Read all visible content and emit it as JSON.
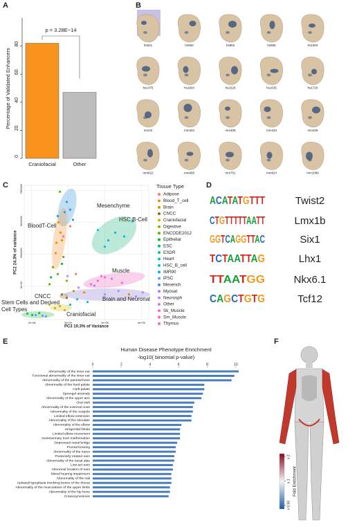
{
  "panel_labels": [
    "A",
    "B",
    "C",
    "D",
    "E",
    "F"
  ],
  "chart_data": [
    {
      "type": "bar",
      "ylabel": "Percentage of Validated Enhancers",
      "categories": [
        "Craniofacial",
        "Other"
      ],
      "values": [
        82,
        47
      ],
      "colors": [
        "#f7931e",
        "#bdbdbd"
      ],
      "ylim": [
        0,
        100
      ],
      "yticks": [
        0,
        20,
        40,
        60,
        80
      ],
      "annotation": "p = 3.28E−14"
    },
    {
      "type": "scatter",
      "xlabel": "PC3 10.3% of Variance",
      "ylabel": "PC2 24.3% of variance",
      "legend_title": "Tissue Type",
      "xlim": [
        -2400000,
        4400000
      ],
      "ylim": [
        -2600000,
        7900000
      ],
      "xticks": [
        {
          "value": -2000000,
          "label": "-2e+06"
        },
        {
          "value": 0,
          "label": "0e+00"
        },
        {
          "value": 2000000,
          "label": "2e+06"
        },
        {
          "value": 4000000,
          "label": "4e+06"
        }
      ],
      "yticks": [
        {
          "value": 0,
          "label": "0e+00"
        },
        2500000,
        5000000,
        7500000
      ],
      "grid": true,
      "series": [
        {
          "name": "Adipose",
          "color": "#f8766d",
          "x": [
            110000,
            420000
          ],
          "values": [
            4700000,
            960000
          ]
        },
        {
          "name": "Blood_T_cell",
          "color": "#f08a1c",
          "x": [
            -530000,
            -420000,
            -640000,
            -340000,
            -680000
          ],
          "values": [
            5000000,
            4200000,
            3400000,
            3600000,
            2600000
          ]
        },
        {
          "name": "Brain",
          "color": "#d39200",
          "x": [
            870000,
            3320000
          ],
          "values": [
            -480000,
            -640000
          ]
        },
        {
          "name": "CNCC",
          "color": "#8c6d1f",
          "x": [
            -340000,
            -80000
          ],
          "values": [
            -640000,
            -910000
          ]
        },
        {
          "name": "Craniofacial",
          "color": "#c9b300",
          "x": [
            -1020000,
            -720000,
            -450000,
            -190000
          ],
          "values": [
            -1440000,
            -1710000,
            -1550000,
            -1870000
          ]
        },
        {
          "name": "Digestive",
          "color": "#93aa00",
          "x": [
            300000,
            -80000
          ],
          "values": [
            -370000,
            430000
          ]
        },
        {
          "name": "ENCODE2012",
          "color": "#5eb300",
          "x": [
            -450000,
            -830000,
            -570000,
            -260000,
            -1020000
          ],
          "values": [
            7400000,
            1500000,
            960000,
            2300000,
            160000
          ]
        },
        {
          "name": "Epithelial",
          "color": "#00ba38",
          "x": [
            -940000,
            -340000
          ],
          "values": [
            700000,
            1760000
          ]
        },
        {
          "name": "ESC",
          "color": "#00bf74",
          "x": [
            -1960000,
            -1580000,
            -2230000
          ],
          "values": [
            -2250000,
            -2090000,
            -2140000
          ]
        },
        {
          "name": "ESDR",
          "color": "#00c19f",
          "x": [
            110000
          ],
          "values": [
            -1440000
          ]
        },
        {
          "name": "Heart",
          "color": "#00bfc4",
          "x": [
            490000,
            1060000
          ],
          "values": [
            -1020000,
            -1230000
          ]
        },
        {
          "name": "HSC_B_cell",
          "color": "#00b9e3",
          "x": [
            1620000,
            2190000,
            2570000,
            2000000,
            3510000,
            3060000
          ],
          "values": [
            4400000,
            3600000,
            4200000,
            3100000,
            5100000,
            3900000
          ]
        },
        {
          "name": "IMR90",
          "color": "#00adfa",
          "x": [
            -570000
          ],
          "values": [
            5500000
          ]
        },
        {
          "name": "iPSC",
          "color": "#619cff",
          "x": [
            -1770000,
            -1210000,
            -1400000
          ],
          "values": [
            -2250000,
            -2350000,
            -2300000
          ]
        },
        {
          "name": "Mesench",
          "color": "#3b8ee8",
          "x": [
            -80000,
            110000,
            -190000,
            260000
          ],
          "values": [
            6600000,
            6000000,
            5800000,
            5200000
          ]
        },
        {
          "name": "Myosat",
          "color": "#9e7bff",
          "x": [
            1430000
          ],
          "values": [
            50000
          ]
        },
        {
          "name": "Neurosph",
          "color": "#b983ff",
          "x": [
            2000000,
            2750000,
            3700000,
            4080000
          ],
          "values": [
            -640000,
            -370000,
            -800000,
            -480000
          ]
        },
        {
          "name": "Other",
          "color": "#db72fb",
          "x": [
            570000,
            -40000
          ],
          "values": [
            -110000,
            800000
          ]
        },
        {
          "name": "Sk_Muscle",
          "color": "#f564e3",
          "x": [
            1620000,
            2000000,
            2380000,
            2940000
          ],
          "values": [
            430000,
            700000,
            590000,
            270000
          ]
        },
        {
          "name": "Sm_Muscle",
          "color": "#ff64b0",
          "x": [
            1250000,
            1810000
          ],
          "values": [
            160000,
            800000
          ]
        },
        {
          "name": "Thymus",
          "color": "#ff6c91",
          "x": [
            -260000
          ],
          "values": [
            3900000
          ]
        }
      ],
      "annotations": [
        {
          "lines": [
            "Mesenchyme"
          ],
          "color": "#3a9fd6"
        },
        {
          "lines": [
            "BloodT-Cell"
          ],
          "color": "#ef8a2b"
        },
        {
          "lines": [
            "HSC B-Cell"
          ],
          "color": "#27ad8c"
        },
        {
          "lines": [
            "Muscle"
          ],
          "color": "#e05cb5"
        },
        {
          "lines": [
            "Brain and Neuronal"
          ],
          "color": "#8e7ac9"
        },
        {
          "lines": [
            "Stem Cells and Derived",
            "Cell Types"
          ],
          "color": "#3aa64a"
        },
        {
          "lines": [
            "CNCC"
          ],
          "color": "#8c6d1f"
        },
        {
          "lines": [
            "Craniofacial"
          ],
          "color": "#c9a800"
        }
      ]
    },
    {
      "type": "hbar",
      "title": "Human Disease Phenotype Enrichment",
      "subtitle": "-log10( binomial  p-value)",
      "color": "#4a7ebb",
      "xlim": [
        0,
        10.2
      ],
      "xticks": [
        0,
        2,
        4,
        6,
        8,
        10
      ],
      "categories": [
        "Abnormality of the inner ear",
        "Functional abnormality of the inner ear",
        "Abnormality of the parietal bone",
        "Abnormality of the hard palate",
        "Cleft palate",
        "Sprengel anomaly",
        "Abnormality of the upper arm",
        "Oral cleft",
        "Abnormality of the external nose",
        "Abnormality of the scapula",
        "Limited elbow extension",
        "Abnormality of the shoulder",
        "Abnormality of the elbow",
        "Urogenital fistula",
        "Limited elbow movement",
        "Genitourinary tract malformation",
        "Depressed nasal bridge",
        "Frontal bossing",
        "Abnormality of the nares",
        "Posteriorly rotated ears",
        "Abnormality of the nasal alae",
        "Low-set ears",
        "Abnormal location of ears",
        "Mixed hearing impairment",
        "Abnormality of the nail",
        "Aplasia/Hypoplasia involving bones of the thorax",
        "Abnormality of the musculature of the upper limbs",
        "Abnormality of the hip bone",
        "Craniosynostosis"
      ],
      "values": [
        10.2,
        9.9,
        9.7,
        7.8,
        7.8,
        7.7,
        7.6,
        7.1,
        7.0,
        7.0,
        6.9,
        6.9,
        6.2,
        6.1,
        6.1,
        6.1,
        5.9,
        5.8,
        5.8,
        5.7,
        5.7,
        5.6,
        5.6,
        5.5,
        5.5,
        5.5,
        5.4,
        5.4,
        5.3
      ]
    }
  ],
  "embryos": [
    "hs521",
    "hs550",
    "hs852",
    "hs856",
    "hs1004",
    "hs1475",
    "hs1604",
    "hs1626",
    "hs1635",
    "hs1720",
    "mm43",
    "mm404",
    "mm405",
    "mm423",
    "mm429",
    "mm622",
    "mm666",
    "mm751",
    "mm824",
    "mm1086"
  ],
  "motifs": [
    {
      "logo": "ACATATGTTT",
      "name": "Twist2"
    },
    {
      "logo": "CTGTTTTTAATT",
      "name": "Lmx1b"
    },
    {
      "logo": "GGTCAGGTTAC",
      "name": "Six1"
    },
    {
      "logo": "TCTAATTAG",
      "name": "Lhx1"
    },
    {
      "logo": "TTAATGG",
      "name": "Nkx6.1"
    },
    {
      "logo": "CAGCTGTG",
      "name": "Tcf12"
    }
  ],
  "body_map": {
    "legend_title": "Fold Enrichment",
    "clim": [
      0.45,
      2.2
    ],
    "log": true,
    "ticks": [
      {
        "value": 2,
        "label": "x 2"
      },
      {
        "value": 1,
        "label": "x 1"
      },
      {
        "value": 0.5,
        "label": "x 0.50"
      }
    ]
  }
}
